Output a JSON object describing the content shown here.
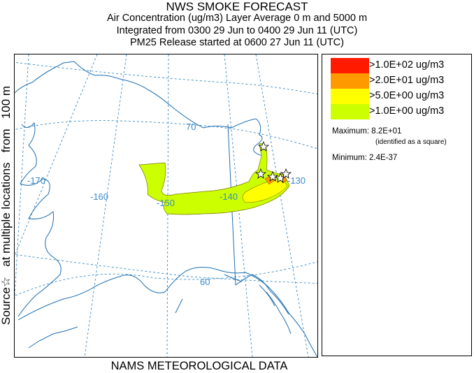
{
  "title": "NWS SMOKE FORECAST",
  "subtitle_line1": "Air Concentration (ug/m3) Layer Average    0 m and  5000 m",
  "subtitle_line2": "Integrated from 0300 29 Jun to 0400 29 Jun 11 (UTC)",
  "subtitle_line3": "PM25 Release started at 0600 27 Jun 11 (UTC)",
  "side_label": "Source☆   at multiple locations   from   100 m",
  "footer": "NAMS METEOROLOGICAL DATA",
  "map": {
    "region": "Alaska",
    "graticule_labels": {
      "lat_70": "70",
      "lat_60": "60",
      "lon_170": "-170",
      "lon_160": "-160",
      "lon_150": "-150",
      "lon_140": "-140",
      "lon_130": "-130"
    },
    "colors": {
      "graticule": "#3a8ac4",
      "coastline": "#1f6fb0",
      "border": "#1f6fb0"
    },
    "source_marker": "star-icon"
  },
  "legend": {
    "items": [
      {
        "label": ">1.0E+02 ug/m3",
        "color": "#ff1a00"
      },
      {
        "label": ">2.0E+01 ug/m3",
        "color": "#ff9900"
      },
      {
        "label": ">5.0E+00 ug/m3",
        "color": "#ffff00"
      },
      {
        "label": ">1.0E+00 ug/m3",
        "color": "#ccff00"
      }
    ],
    "maximum_label": "Maximum: 8.2E+01",
    "maximum_note": "(identified as a square)",
    "minimum_label": "Minimum: 2.4E-37"
  }
}
